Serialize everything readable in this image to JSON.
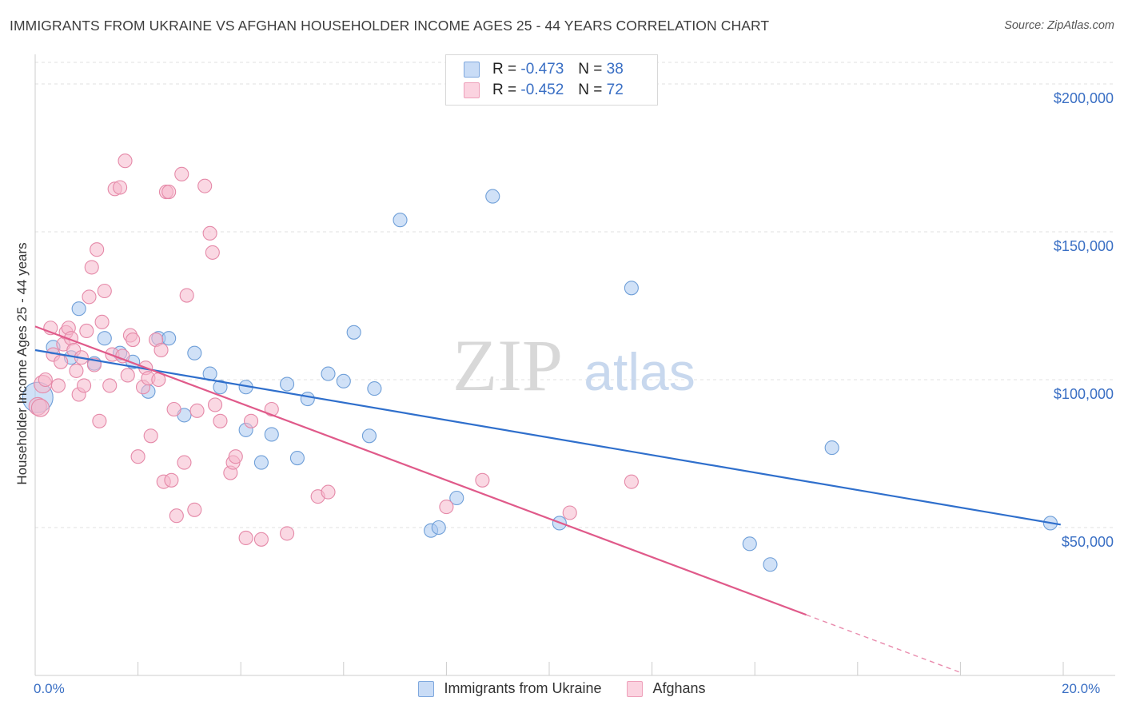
{
  "title": "IMMIGRANTS FROM UKRAINE VS AFGHAN HOUSEHOLDER INCOME AGES 25 - 44 YEARS CORRELATION CHART",
  "source": "Source: ZipAtlas.com",
  "watermark": {
    "zip": "ZIP",
    "atlas": "atlas"
  },
  "legend": {
    "rows": [
      {
        "r_label": "R = ",
        "r_value": "-0.473",
        "n_label": "N = ",
        "n_value": "38",
        "color": "#a9c8f0"
      },
      {
        "r_label": "R = ",
        "r_value": "-0.452",
        "n_label": "N = ",
        "n_value": "72",
        "color": "#f5b8cc"
      }
    ]
  },
  "chart_data": {
    "type": "scatter",
    "title": "IMMIGRANTS FROM UKRAINE VS AFGHAN HOUSEHOLDER INCOME AGES 25 - 44 YEARS CORRELATION CHART",
    "xlabel": "",
    "ylabel": "Householder Income Ages 25 - 44 years",
    "xlim": [
      0,
      20
    ],
    "ylim": [
      0,
      210000
    ],
    "x_tick_labels": [
      "0.0%",
      "20.0%"
    ],
    "y_ticks": [
      50000,
      100000,
      150000,
      200000
    ],
    "y_tick_labels": [
      "$50,000",
      "$100,000",
      "$150,000",
      "$200,000"
    ],
    "grid": true,
    "series": [
      {
        "name": "Immigrants from Ukraine",
        "color": "#a9c8f0",
        "stroke": "#6f9fd8",
        "line_color": "#2f6fcc",
        "trend": {
          "x": [
            0.0,
            19.95
          ],
          "y": [
            110000,
            51000
          ]
        },
        "points": [
          [
            0.05,
            94000
          ],
          [
            0.35,
            111000
          ],
          [
            0.7,
            107500
          ],
          [
            0.85,
            124000
          ],
          [
            1.15,
            105500
          ],
          [
            1.35,
            114000
          ],
          [
            1.65,
            109000
          ],
          [
            1.9,
            106000
          ],
          [
            2.2,
            96000
          ],
          [
            2.4,
            114000
          ],
          [
            2.6,
            114000
          ],
          [
            2.9,
            88000
          ],
          [
            3.1,
            109000
          ],
          [
            3.4,
            102000
          ],
          [
            3.6,
            97500
          ],
          [
            4.1,
            97500
          ],
          [
            4.1,
            83000
          ],
          [
            4.4,
            72000
          ],
          [
            4.6,
            81500
          ],
          [
            4.9,
            98500
          ],
          [
            5.1,
            73500
          ],
          [
            5.3,
            93500
          ],
          [
            5.7,
            102000
          ],
          [
            6.0,
            99500
          ],
          [
            6.2,
            116000
          ],
          [
            6.5,
            81000
          ],
          [
            6.6,
            97000
          ],
          [
            7.1,
            154000
          ],
          [
            7.7,
            49000
          ],
          [
            7.85,
            50000
          ],
          [
            8.2,
            60000
          ],
          [
            8.9,
            162000
          ],
          [
            10.2,
            51500
          ],
          [
            11.6,
            131000
          ],
          [
            13.9,
            44500
          ],
          [
            14.3,
            37500
          ],
          [
            15.5,
            77000
          ],
          [
            19.75,
            51500
          ]
        ],
        "sizes": [
          3,
          1,
          1,
          1,
          1,
          1,
          1,
          1,
          1,
          1,
          1,
          1,
          1,
          1,
          1,
          1,
          1,
          1,
          1,
          1,
          1,
          1,
          1,
          1,
          1,
          1,
          1,
          1,
          1,
          1,
          1,
          1,
          1,
          1,
          1,
          1,
          1,
          1
        ]
      },
      {
        "name": "Afghans",
        "color": "#f5b8cc",
        "stroke": "#e589a8",
        "line_color": "#e05a8a",
        "trend": {
          "x": [
            0.0,
            15.0
          ],
          "y": [
            118000,
            20500
          ]
        },
        "trend_dashed": {
          "x": [
            15.0,
            18.0
          ],
          "y": [
            20500,
            1000
          ]
        },
        "points": [
          [
            0.05,
            91000
          ],
          [
            0.1,
            90500
          ],
          [
            0.15,
            98500
          ],
          [
            0.2,
            100000
          ],
          [
            0.3,
            117500
          ],
          [
            0.35,
            108500
          ],
          [
            0.45,
            98000
          ],
          [
            0.5,
            106000
          ],
          [
            0.55,
            112000
          ],
          [
            0.6,
            116000
          ],
          [
            0.65,
            117500
          ],
          [
            0.7,
            114000
          ],
          [
            0.75,
            110000
          ],
          [
            0.8,
            103000
          ],
          [
            0.85,
            95000
          ],
          [
            0.9,
            107500
          ],
          [
            0.95,
            98000
          ],
          [
            1.0,
            116500
          ],
          [
            1.05,
            128000
          ],
          [
            1.1,
            138000
          ],
          [
            1.15,
            105000
          ],
          [
            1.2,
            144000
          ],
          [
            1.25,
            86000
          ],
          [
            1.3,
            119500
          ],
          [
            1.35,
            130000
          ],
          [
            1.45,
            98000
          ],
          [
            1.5,
            108500
          ],
          [
            1.55,
            164500
          ],
          [
            1.65,
            165000
          ],
          [
            1.7,
            108000
          ],
          [
            1.75,
            174000
          ],
          [
            1.8,
            101500
          ],
          [
            1.85,
            115000
          ],
          [
            1.9,
            113500
          ],
          [
            2.0,
            74000
          ],
          [
            2.1,
            97500
          ],
          [
            2.15,
            104000
          ],
          [
            2.2,
            100500
          ],
          [
            2.25,
            81000
          ],
          [
            2.35,
            113500
          ],
          [
            2.4,
            100000
          ],
          [
            2.45,
            110000
          ],
          [
            2.5,
            65500
          ],
          [
            2.55,
            163500
          ],
          [
            2.6,
            163500
          ],
          [
            2.65,
            66000
          ],
          [
            2.7,
            90000
          ],
          [
            2.75,
            54000
          ],
          [
            2.85,
            169500
          ],
          [
            2.9,
            72000
          ],
          [
            2.95,
            128500
          ],
          [
            3.1,
            56000
          ],
          [
            3.15,
            89500
          ],
          [
            3.3,
            165500
          ],
          [
            3.4,
            149500
          ],
          [
            3.45,
            143000
          ],
          [
            3.5,
            91500
          ],
          [
            3.6,
            86000
          ],
          [
            3.8,
            68500
          ],
          [
            3.85,
            72000
          ],
          [
            3.9,
            74000
          ],
          [
            4.1,
            46500
          ],
          [
            4.2,
            86000
          ],
          [
            4.4,
            46000
          ],
          [
            4.6,
            90000
          ],
          [
            4.9,
            48000
          ],
          [
            5.5,
            60500
          ],
          [
            5.7,
            62000
          ],
          [
            8.0,
            57000
          ],
          [
            8.7,
            66000
          ],
          [
            10.4,
            55000
          ],
          [
            11.6,
            65500
          ]
        ],
        "sizes": [
          2,
          2,
          2,
          1,
          1,
          1,
          1,
          1,
          1,
          1,
          1,
          1,
          1,
          1,
          1,
          1,
          1,
          1,
          1,
          1,
          1,
          1,
          1,
          1,
          1,
          1,
          1,
          1,
          1,
          1,
          1,
          1,
          1,
          1,
          1,
          1,
          1,
          1,
          1,
          1,
          1,
          1,
          1,
          1,
          1,
          1,
          1,
          1,
          1,
          1,
          1,
          1,
          1,
          1,
          1,
          1,
          1,
          1,
          1,
          1,
          1,
          1,
          1,
          1,
          1,
          1,
          1,
          1,
          1,
          1,
          1,
          1
        ]
      }
    ]
  }
}
